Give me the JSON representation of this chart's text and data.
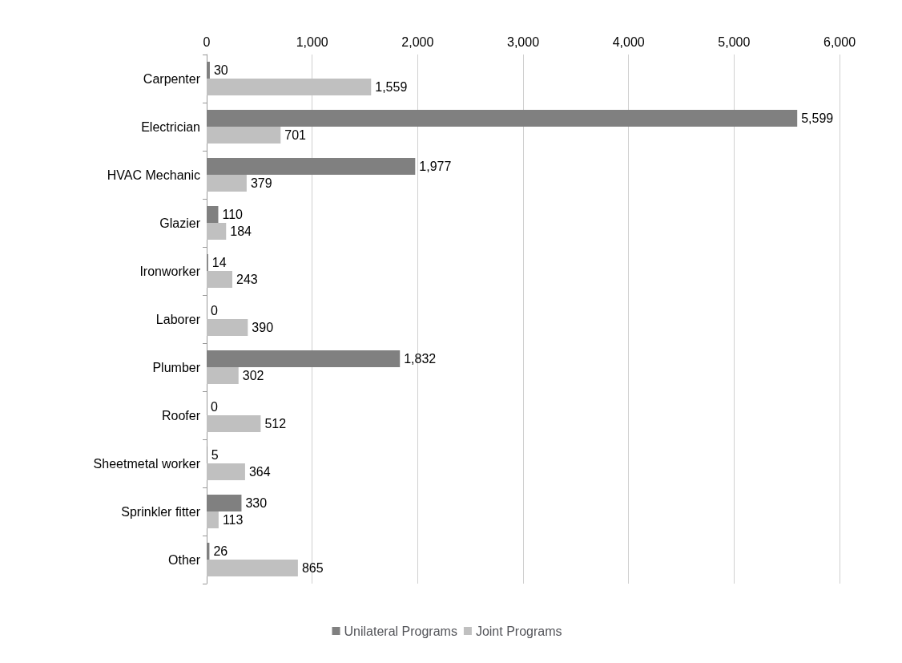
{
  "chart_data": {
    "type": "bar",
    "orientation": "horizontal",
    "categories": [
      "Carpenter",
      "Electrician",
      "HVAC Mechanic",
      "Glazier",
      "Ironworker",
      "Laborer",
      "Plumber",
      "Roofer",
      "Sheetmetal worker",
      "Sprinkler fitter",
      "Other"
    ],
    "series": [
      {
        "name": "Unilateral Programs",
        "color": "#808080",
        "values": [
          30,
          5599,
          1977,
          110,
          14,
          0,
          1832,
          0,
          5,
          330,
          26
        ],
        "value_labels": [
          "30",
          "5,599",
          "1,977",
          "110",
          "14",
          "0",
          "1,832",
          "0",
          "5",
          "330",
          "26"
        ]
      },
      {
        "name": "Joint Programs",
        "color": "#c0c0c0",
        "values": [
          1559,
          701,
          379,
          184,
          243,
          390,
          302,
          512,
          364,
          113,
          865
        ],
        "value_labels": [
          "1,559",
          "701",
          "379",
          "184",
          "243",
          "390",
          "302",
          "512",
          "364",
          "113",
          "865"
        ]
      }
    ],
    "xlim": [
      0,
      6000
    ],
    "xticks": [
      0,
      {
        "value": 1000,
        "label": "1,000"
      },
      {
        "value": 2000,
        "label": "2,000"
      },
      {
        "value": 3000,
        "label": "3,000"
      },
      {
        "value": 4000,
        "label": "4,000"
      },
      {
        "value": 5000,
        "label": "5,000"
      },
      {
        "value": 6000,
        "label": "6,000"
      }
    ],
    "grid": "x",
    "legend": "bottom"
  }
}
